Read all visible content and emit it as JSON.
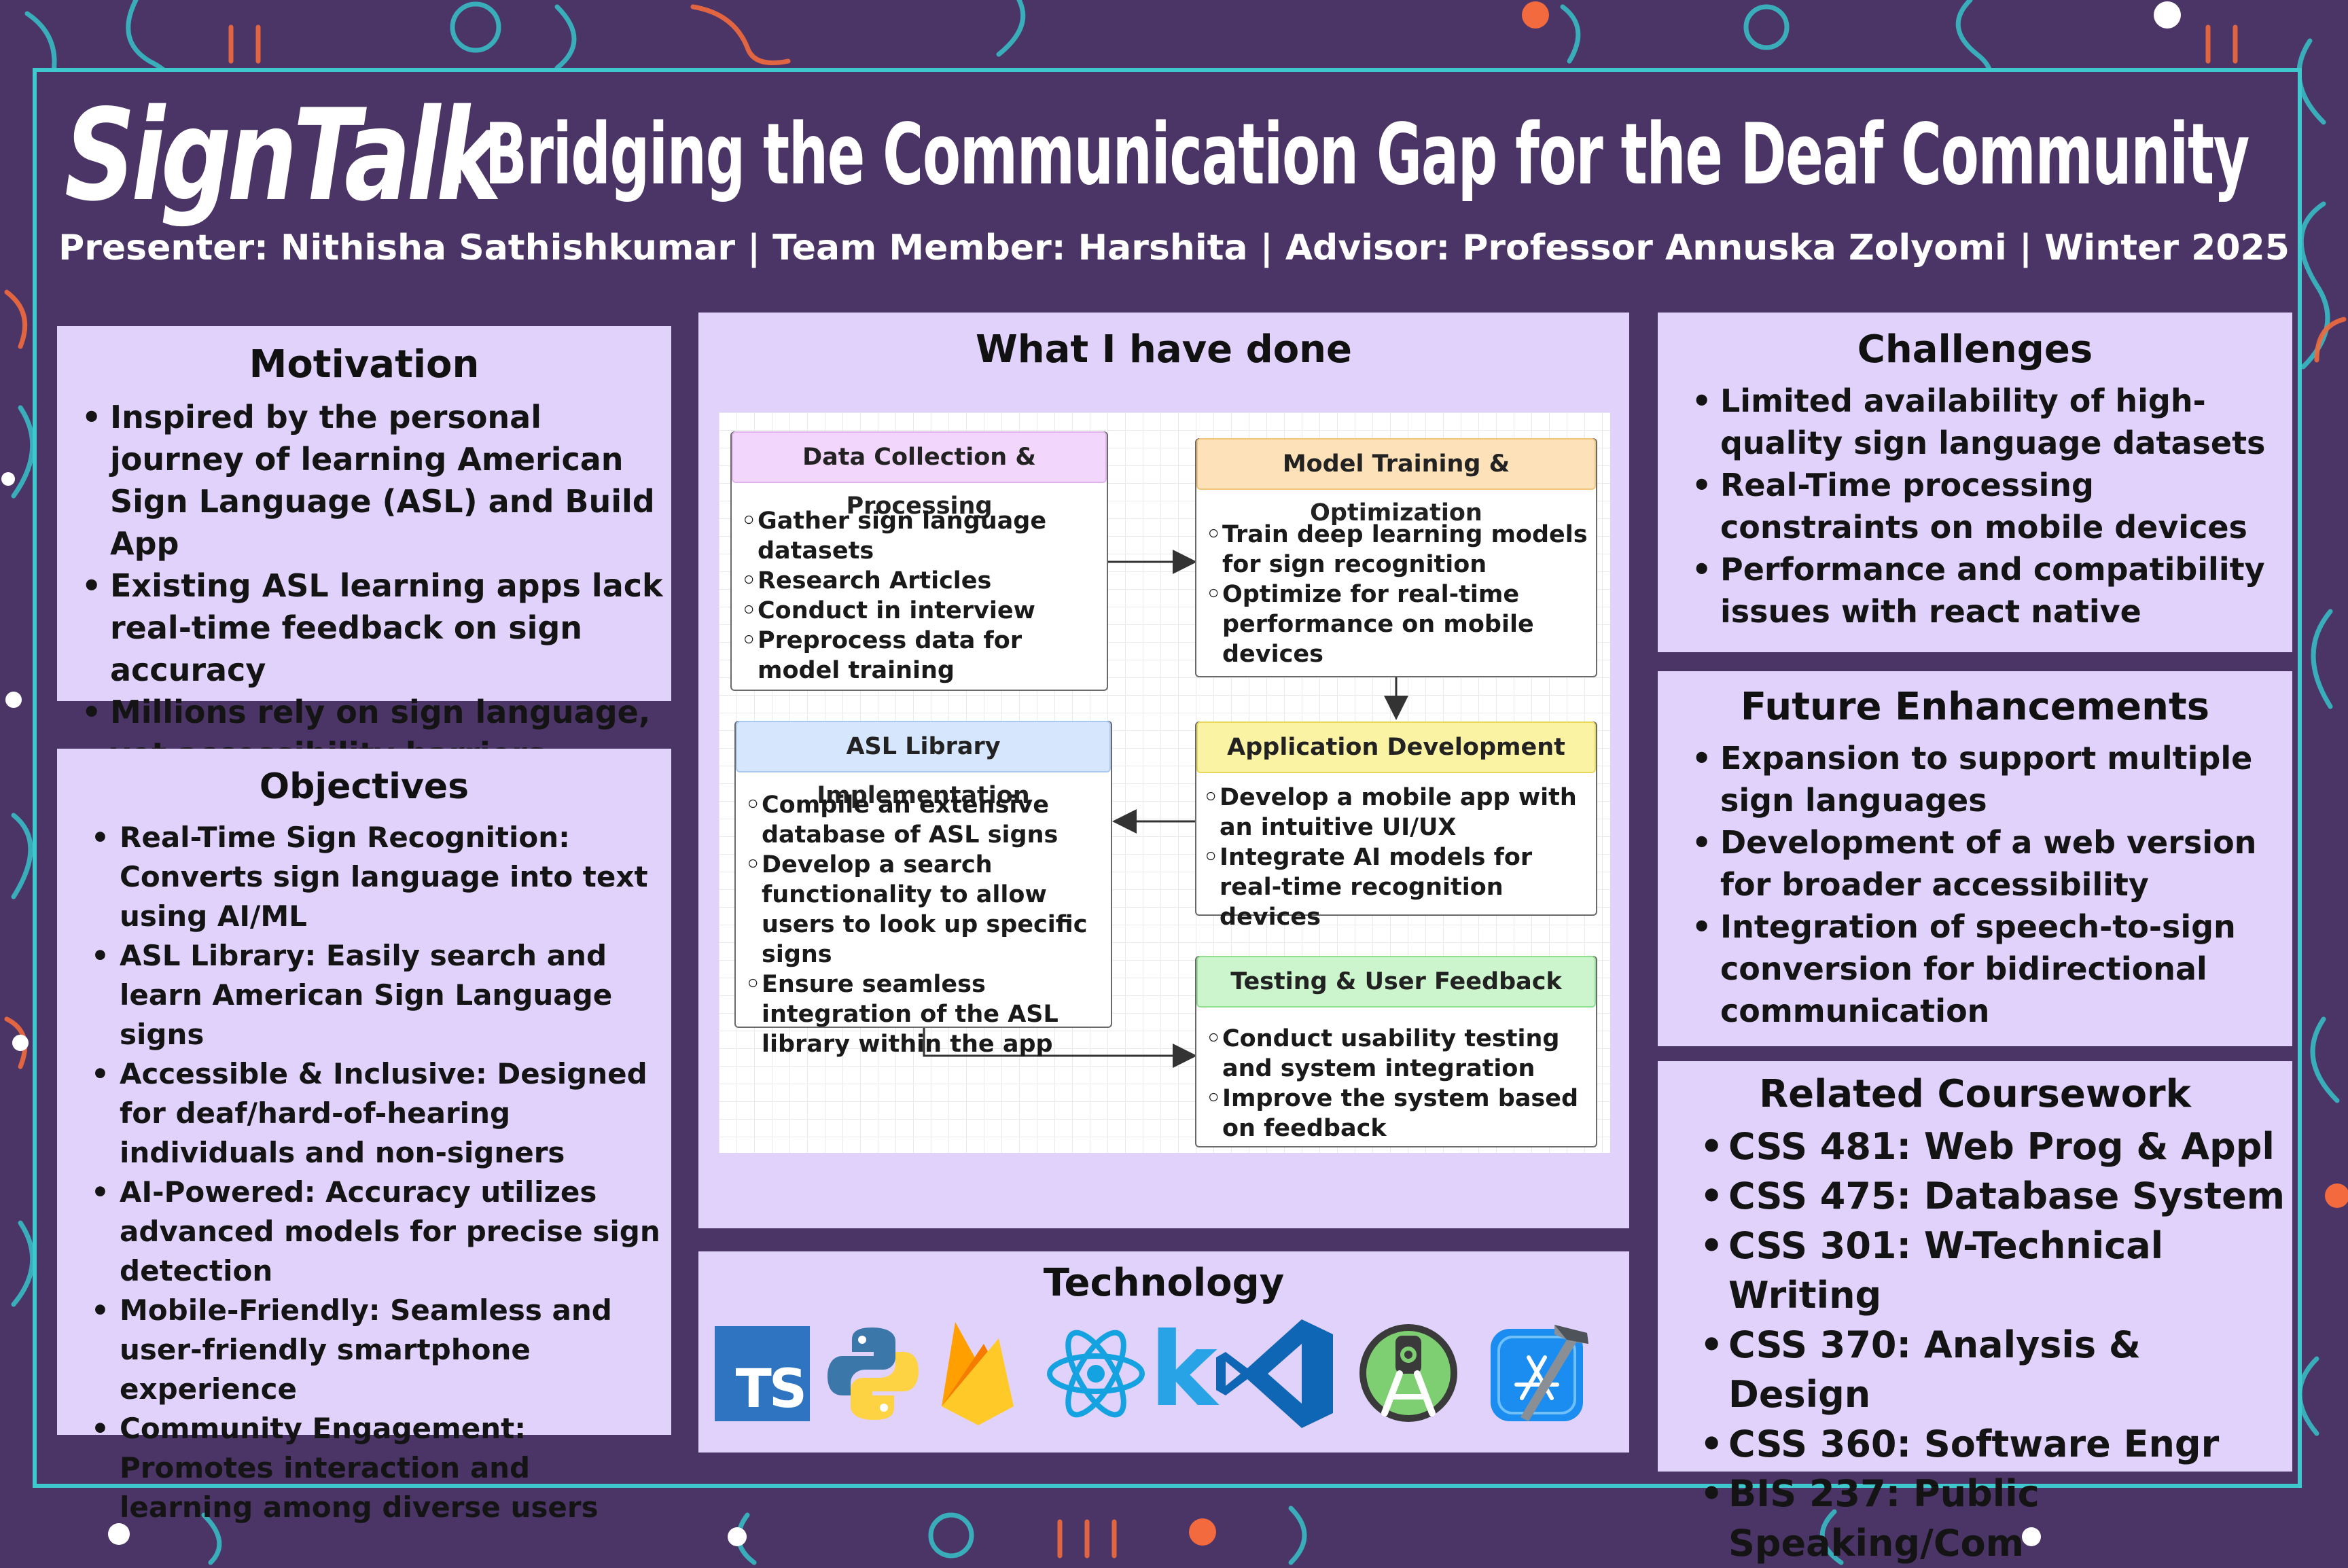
{
  "title": {
    "brand": "SignTalk",
    "rest": ": Bridging the Communication Gap for the Deaf Community"
  },
  "subtitle": "Presenter: Nithisha Sathishkumar | Team Member: Harshita | Advisor: Professor Annuska Zolyomi | Winter 2025",
  "motivation": {
    "heading": "Motivation",
    "items": [
      "Inspired by the personal journey of learning American Sign Language (ASL) and Build App",
      "Existing ASL learning apps lack real-time feedback on sign accuracy",
      "Millions rely on sign language, yet accessibility barriers persist"
    ]
  },
  "objectives": {
    "heading": "Objectives",
    "items": [
      "Real-Time Sign Recognition: Converts sign language into text using AI/ML",
      "ASL Library: Easily search and learn American Sign Language signs",
      "Accessible & Inclusive: Designed for deaf/hard-of-hearing individuals and non-signers",
      "AI-Powered: Accuracy utilizes advanced models for precise sign detection",
      "Mobile-Friendly: Seamless and user-friendly smartphone experience",
      "Community Engagement: Promotes interaction and learning among diverse users"
    ]
  },
  "done": {
    "heading": "What I have done",
    "nodes": [
      {
        "title": "Data Collection & Processing",
        "color": "#f3d6fb",
        "items": [
          "Gather sign language datasets",
          "Research Articles",
          "Conduct in interview",
          "Preprocess data for model training"
        ]
      },
      {
        "title": "Model Training & Optimization",
        "color": "#fde1b8",
        "items": [
          "Train deep learning models for sign recognition",
          "Optimize for real-time performance on mobile devices"
        ]
      },
      {
        "title": "ASL Library Implementation",
        "color": "#d6e6fc",
        "items": [
          "Compile an extensive database of ASL signs",
          "Develop a search functionality to allow users to look up specific signs",
          "Ensure seamless integration of the ASL library within the app"
        ]
      },
      {
        "title": "Application Development",
        "color": "#fbf3a4",
        "items": [
          "Develop a mobile app with an intuitive UI/UX",
          "Integrate AI models for real-time recognition devices"
        ]
      },
      {
        "title": "Testing & User Feedback",
        "color": "#cdf5cd",
        "items": [
          "Conduct usability testing and system integration",
          "Improve the system based on feedback"
        ]
      }
    ]
  },
  "technology": {
    "heading": "Technology",
    "icons": [
      "typescript-icon",
      "python-icon",
      "firebase-icon",
      "react-icon",
      "kotlin-icon",
      "vscode-icon",
      "android-studio-icon",
      "xcode-icon"
    ],
    "ts_label": "TS",
    "k_label": "k"
  },
  "challenges": {
    "heading": "Challenges",
    "items": [
      "Limited availability of high-quality sign language datasets",
      "Real-Time processing constraints on mobile devices",
      "Performance and compatibility issues with react native"
    ]
  },
  "future": {
    "heading": "Future Enhancements",
    "items": [
      "Expansion to support multiple sign languages",
      "Development of a web version for broader accessibility",
      "Integration of speech-to-sign conversion for bidirectional communication"
    ]
  },
  "coursework": {
    "heading": "Related Coursework",
    "items": [
      "CSS 481: Web Prog & Appl",
      "CSS 475: Database System",
      "CSS 301: W-Technical Writing",
      "CSS 370: Analysis & Design",
      "CSS 360: Software Engr",
      "BIS 237: Public Speaking/Com"
    ]
  },
  "colors": {
    "background": "#4a3566",
    "frame": "#3ec9cf",
    "panel": "#e1d2fc",
    "accent_orange": "#f26a3d"
  }
}
